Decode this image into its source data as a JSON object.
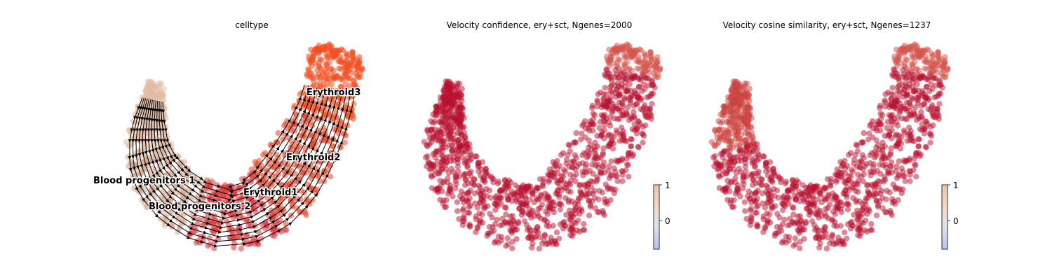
{
  "chart_data": [
    {
      "type": "scatter",
      "subtype": "umap-embedding-with-velocity-streamlines",
      "title": "celltype",
      "axes_visible": false,
      "streamlines": true,
      "categories": [
        {
          "name": "Blood progenitors 1",
          "color": "#e2bca4"
        },
        {
          "name": "Blood progenitors 2",
          "color": "#cfa892"
        },
        {
          "name": "Erythroid1",
          "color": "#d8383c"
        },
        {
          "name": "Erythroid2",
          "color": "#e04a2e"
        },
        {
          "name": "Erythroid3",
          "color": "#f05022"
        }
      ]
    },
    {
      "type": "scatter",
      "subtype": "umap-embedding-colored-by-value",
      "title": "Velocity confidence, ery+sct, Ngenes=2000",
      "axes_visible": false,
      "colormap": "coolwarm",
      "colorbar": {
        "ticks": [
          "1",
          "0"
        ],
        "range": [
          -0.7,
          1
        ]
      },
      "dominant_color": "#b8102e"
    },
    {
      "type": "scatter",
      "subtype": "umap-embedding-colored-by-value",
      "title": "Velocity cosine similarity, ery+sct, Ngenes=1237",
      "axes_visible": false,
      "colormap": "coolwarm",
      "colorbar": {
        "ticks": [
          "1",
          "0"
        ],
        "range": [
          -0.7,
          1
        ]
      },
      "dominant_color": "#b8102e"
    }
  ]
}
